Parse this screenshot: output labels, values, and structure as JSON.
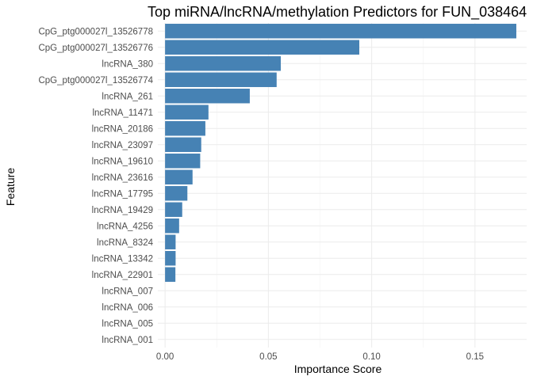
{
  "chart_data": {
    "type": "bar",
    "orientation": "horizontal",
    "title": "Top miRNA/lncRNA/methylation Predictors for FUN_038464",
    "xlabel": "Importance Score",
    "ylabel": "Feature",
    "xlim": [
      -0.0035,
      0.175
    ],
    "x_ticks": [
      0,
      0.05,
      0.1,
      0.15
    ],
    "x_tick_labels": [
      "0.00",
      "0.05",
      "0.10",
      "0.15"
    ],
    "grid": true,
    "legend": "none",
    "bar_color": "#4682b4",
    "categories": [
      "CpG_ptg000027l_13526778",
      "CpG_ptg000027l_13526776",
      "lncRNA_380",
      "CpG_ptg000027l_13526774",
      "lncRNA_261",
      "lncRNA_11471",
      "lncRNA_20186",
      "lncRNA_23097",
      "lncRNA_19610",
      "lncRNA_23616",
      "lncRNA_17795",
      "lncRNA_19429",
      "lncRNA_4256",
      "lncRNA_8324",
      "lncRNA_13342",
      "lncRNA_22901",
      "lncRNA_007",
      "lncRNA_006",
      "lncRNA_005",
      "lncRNA_001"
    ],
    "values": [
      0.17,
      0.094,
      0.056,
      0.054,
      0.041,
      0.021,
      0.0195,
      0.0175,
      0.017,
      0.0133,
      0.0108,
      0.0083,
      0.0068,
      0.0051,
      0.0051,
      0.005,
      0,
      0,
      0,
      0
    ]
  }
}
